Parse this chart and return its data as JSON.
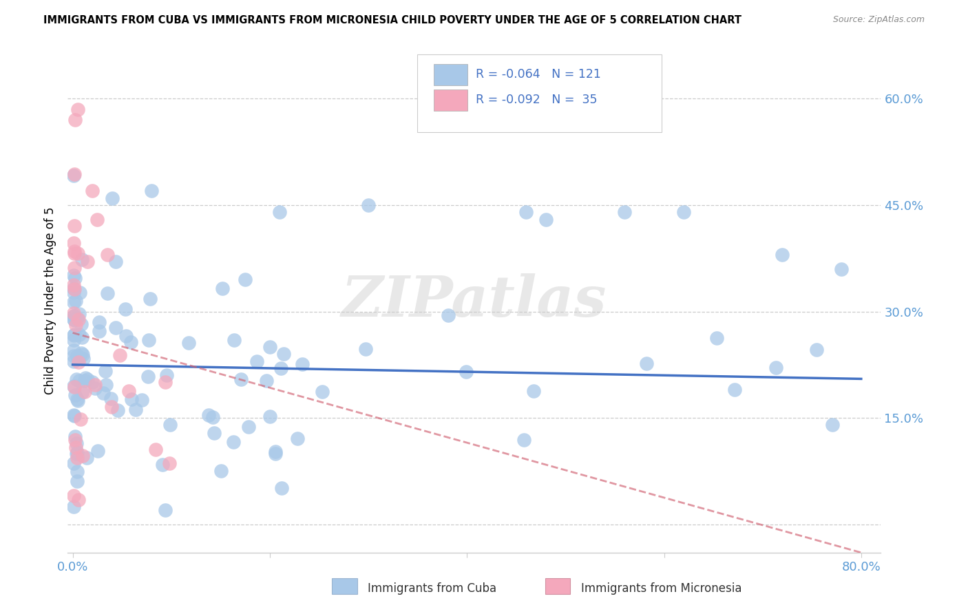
{
  "title": "IMMIGRANTS FROM CUBA VS IMMIGRANTS FROM MICRONESIA CHILD POVERTY UNDER THE AGE OF 5 CORRELATION CHART",
  "source": "Source: ZipAtlas.com",
  "ylabel": "Child Poverty Under the Age of 5",
  "xlim": [
    -0.005,
    0.82
  ],
  "ylim": [
    -0.04,
    0.67
  ],
  "yticks": [
    0.0,
    0.15,
    0.3,
    0.45,
    0.6
  ],
  "ytick_labels": [
    "",
    "15.0%",
    "30.0%",
    "45.0%",
    "60.0%"
  ],
  "xticks": [
    0.0,
    0.2,
    0.4,
    0.6,
    0.8
  ],
  "xtick_labels": [
    "0.0%",
    "",
    "",
    "",
    "80.0%"
  ],
  "cuba_R": -0.064,
  "cuba_N": 121,
  "micronesia_R": -0.092,
  "micronesia_N": 35,
  "cuba_color": "#a8c8e8",
  "micronesia_color": "#f4a8bc",
  "cuba_line_color": "#4472c4",
  "micronesia_line_color": "#d06070",
  "cuba_line_x0": 0.0,
  "cuba_line_x1": 0.8,
  "cuba_line_y0": 0.225,
  "cuba_line_y1": 0.205,
  "micro_line_x0": 0.0,
  "micro_line_x1": 0.8,
  "micro_line_y0": 0.27,
  "micro_line_y1": -0.04,
  "legend_label_cuba": "R = -0.064   N = 121",
  "legend_label_micro": "R = -0.092   N =  35",
  "bottom_legend_cuba": "Immigrants from Cuba",
  "bottom_legend_micro": "Immigrants from Micronesia"
}
